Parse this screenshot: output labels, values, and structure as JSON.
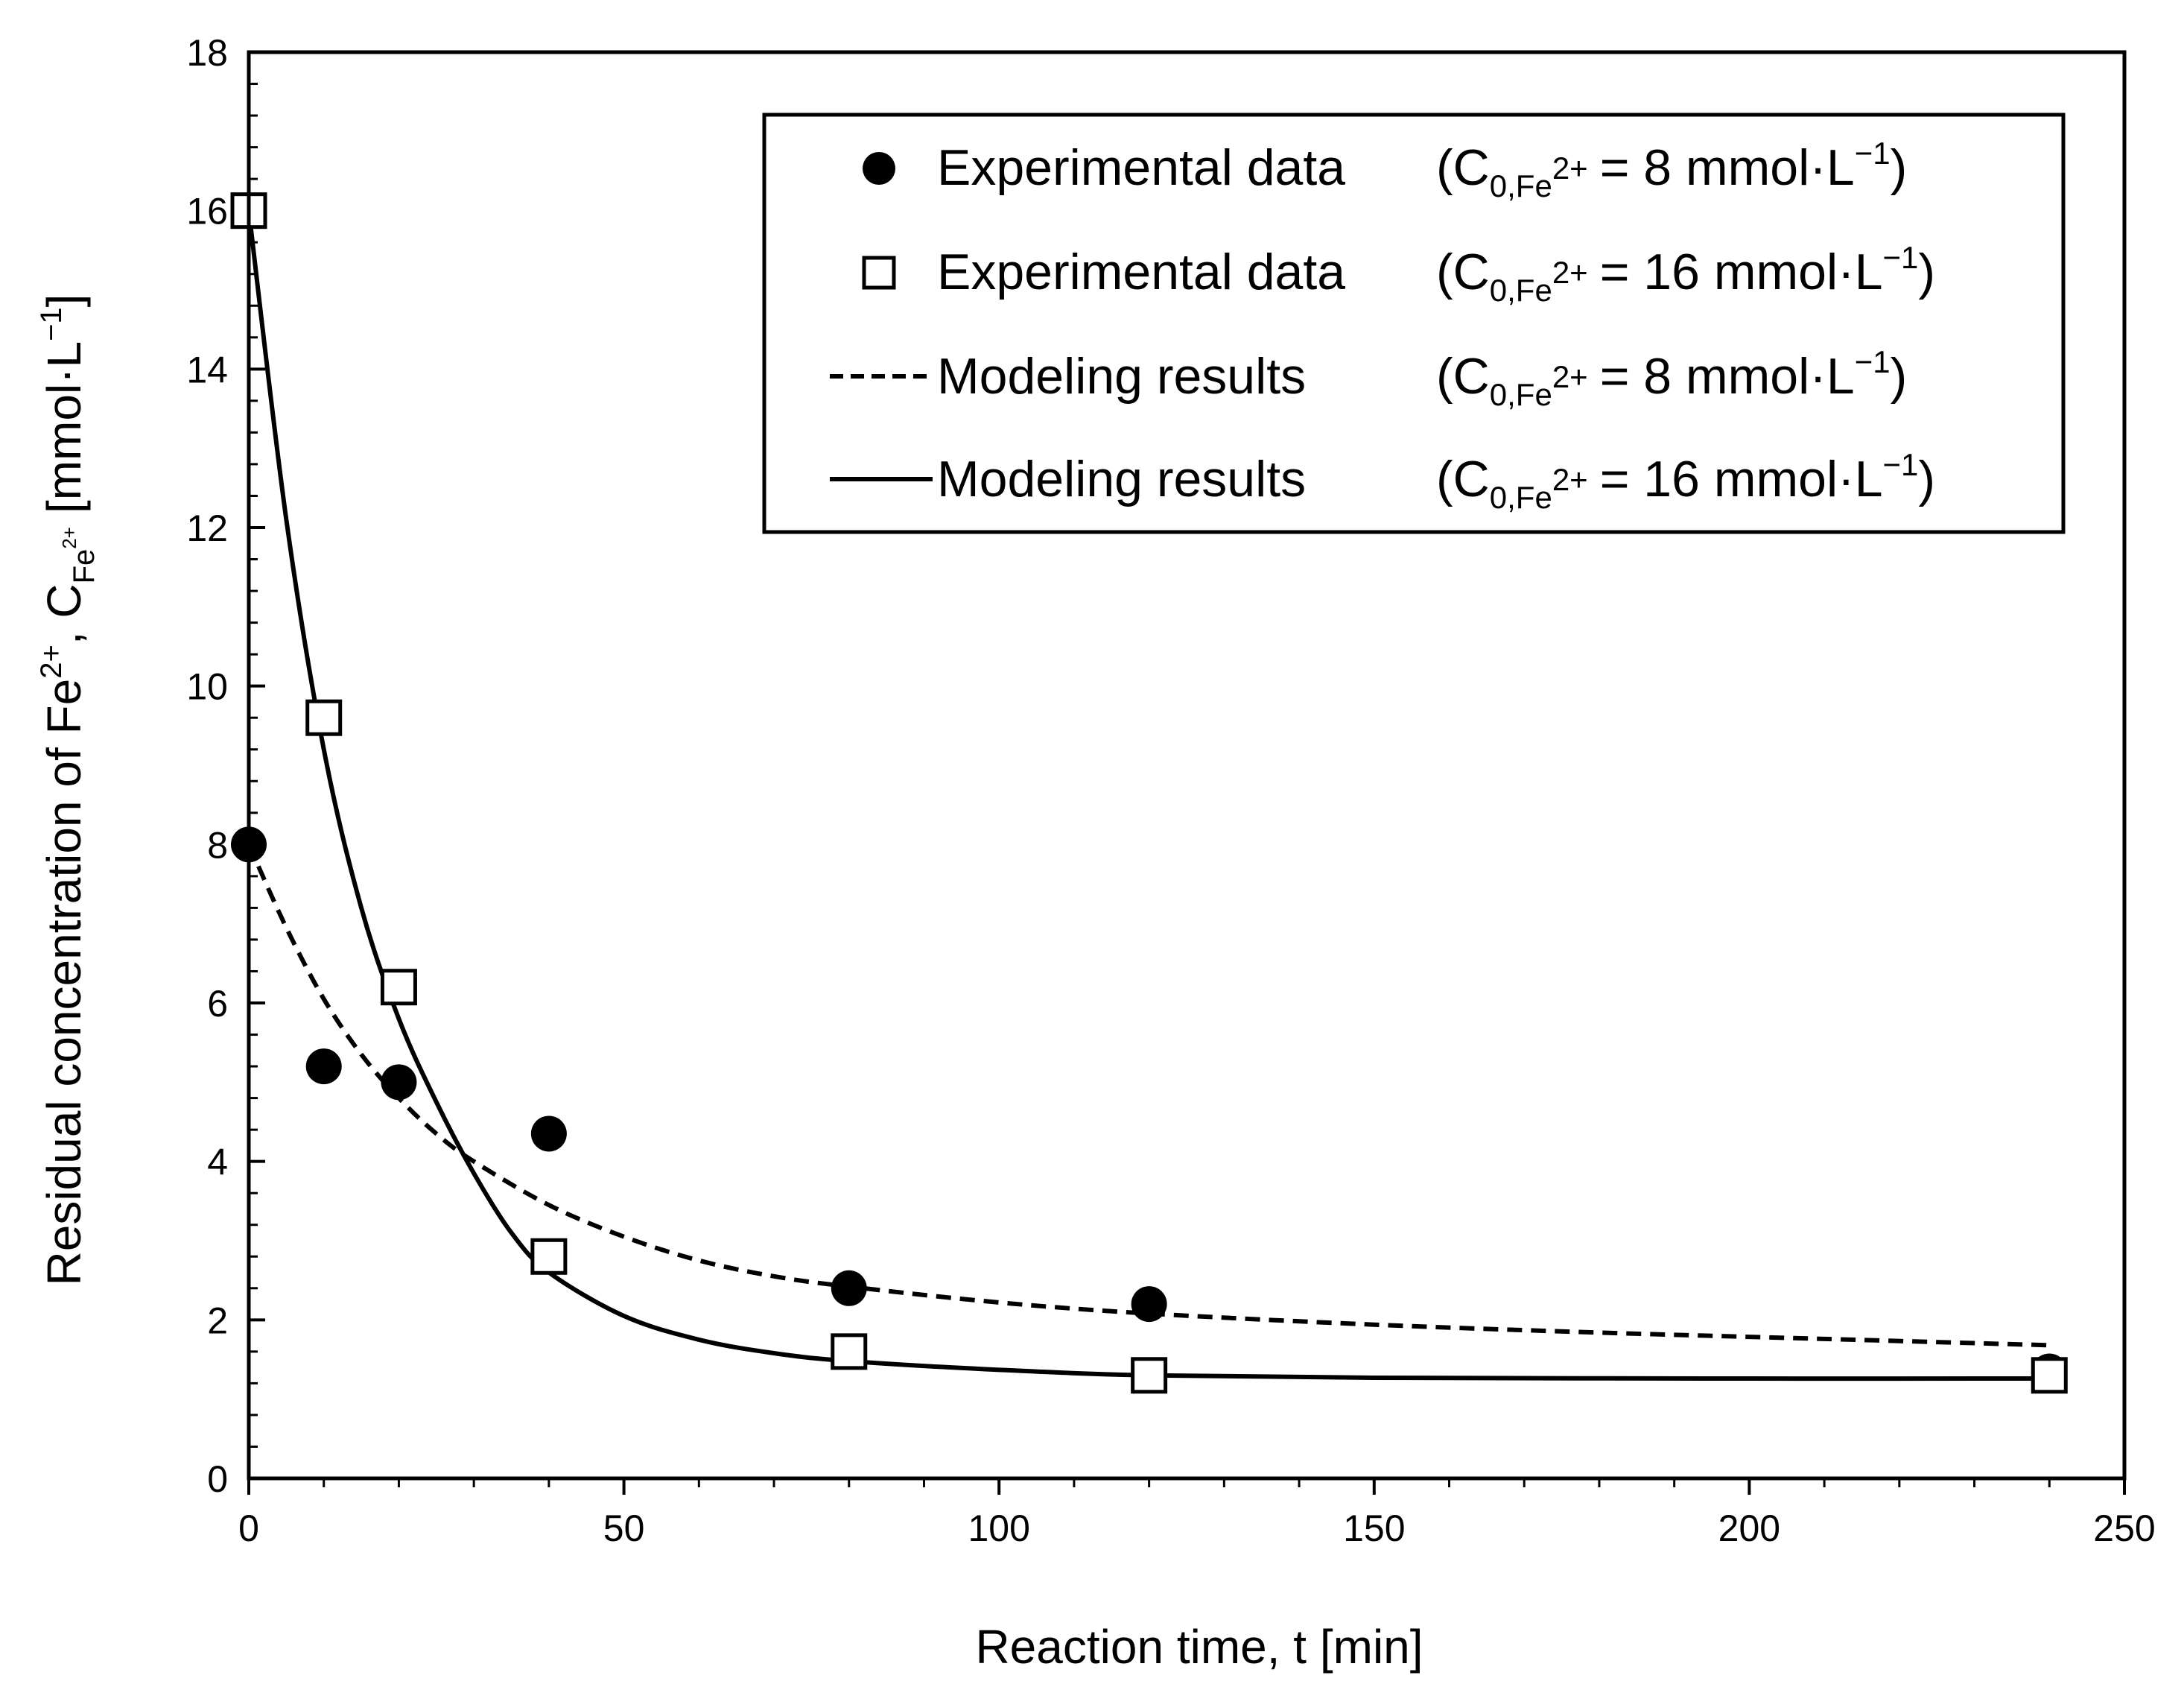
{
  "chart_data": {
    "type": "scatter",
    "title": "",
    "xlabel": "Reaction time, t [min]",
    "ylabel": {
      "prefix": "Residual concentration of Fe",
      "sup": "2+",
      "symbol": "C",
      "sub": "Fe",
      "sub_sup": "2+",
      "unit": "[mmol·L",
      "unit_sup": "−1",
      "unit_end": "]"
    },
    "xlim": [
      0,
      250
    ],
    "ylim": [
      0,
      18
    ],
    "xticks": [
      0,
      50,
      100,
      150,
      200,
      250
    ],
    "yticks": [
      0,
      2,
      4,
      6,
      8,
      10,
      12,
      14,
      16,
      18
    ],
    "legend_position": "top-right",
    "series": [
      {
        "name": "Experimental data (C0,Fe2+ = 8 mmol·L−1)",
        "kind": "markers",
        "marker": "filled-circle",
        "x": [
          0,
          10,
          20,
          40,
          80,
          120,
          240
        ],
        "y": [
          8.0,
          5.2,
          5.0,
          4.35,
          2.4,
          2.2,
          1.35
        ]
      },
      {
        "name": "Experimental data (C0,Fe2+ = 16 mmol·L−1)",
        "kind": "markers",
        "marker": "open-square",
        "x": [
          0,
          10,
          20,
          40,
          80,
          120,
          240
        ],
        "y": [
          16.0,
          9.6,
          6.2,
          2.8,
          1.6,
          1.3,
          1.3
        ]
      },
      {
        "name": "Modeling results (C0,Fe2+ = 8 mmol·L−1)",
        "kind": "line",
        "style": "dashed",
        "x": [
          0,
          5,
          10,
          15,
          20,
          25,
          30,
          40,
          50,
          60,
          70,
          80,
          100,
          120,
          150,
          180,
          210,
          240
        ],
        "y": [
          8.0,
          6.95,
          6.05,
          5.35,
          4.8,
          4.35,
          4.0,
          3.45,
          3.05,
          2.75,
          2.55,
          2.42,
          2.22,
          2.08,
          1.94,
          1.84,
          1.76,
          1.68
        ]
      },
      {
        "name": "Modeling results (C0,Fe2+ = 16 mmol·L−1)",
        "kind": "line",
        "style": "solid",
        "x": [
          0,
          5,
          10,
          15,
          20,
          25,
          30,
          35,
          40,
          50,
          60,
          70,
          80,
          100,
          120,
          150,
          200,
          240
        ],
        "y": [
          16.0,
          12.1,
          9.2,
          7.2,
          5.8,
          4.75,
          3.85,
          3.1,
          2.6,
          2.05,
          1.75,
          1.58,
          1.48,
          1.37,
          1.3,
          1.27,
          1.26,
          1.26
        ]
      }
    ],
    "legend": [
      {
        "marker": "filled-circle",
        "label": "Experimental data",
        "formula_open": "(C",
        "formula_sub": "0,Fe",
        "formula_sup": "2+",
        "formula_value": "=  8 mmol·L",
        "unit_sup": "−1",
        "close": ")"
      },
      {
        "marker": "open-square",
        "label": "Experimental data",
        "formula_open": "(C",
        "formula_sub": "0,Fe",
        "formula_sup": "2+",
        "formula_value": "= 16 mmol·L",
        "unit_sup": "−1",
        "close": ")"
      },
      {
        "marker": "dashed-line",
        "label": "Modeling results",
        "formula_open": "(C",
        "formula_sub": "0,Fe",
        "formula_sup": "2+",
        "formula_value": "=  8 mmol·L",
        "unit_sup": "−1",
        "close": ")"
      },
      {
        "marker": "solid-line",
        "label": "Modeling results",
        "formula_open": "(C",
        "formula_sub": "0,Fe",
        "formula_sup": "2+",
        "formula_value": "= 16 mmol·L",
        "unit_sup": "−1",
        "close": ")"
      }
    ]
  }
}
